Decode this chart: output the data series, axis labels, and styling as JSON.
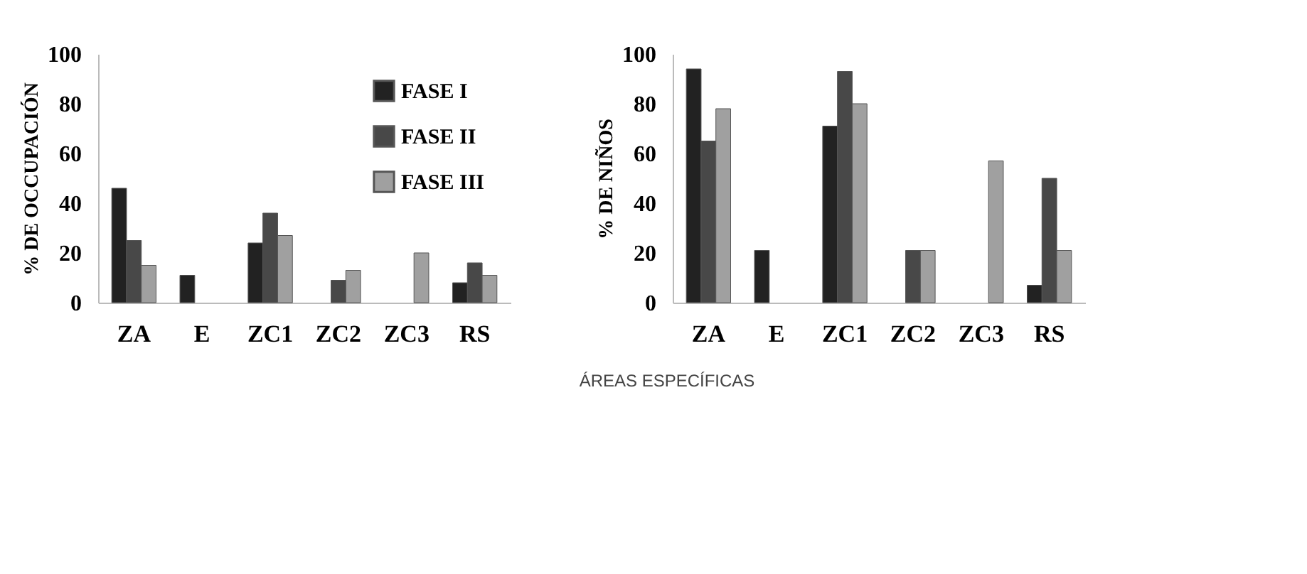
{
  "chart_data": [
    {
      "type": "bar",
      "ylabel": "% DE OCCUPACIÓN",
      "categories": [
        "ZA",
        "E",
        "ZC1",
        "ZC2",
        "ZC3",
        "RS"
      ],
      "ylim": [
        0,
        100
      ],
      "yticks": [
        0,
        20,
        40,
        60,
        80,
        100
      ],
      "legend": "top right",
      "grid": false,
      "series": [
        {
          "name": "FASE I",
          "color": "#222222",
          "values": [
            46,
            11,
            24,
            null,
            null,
            8
          ]
        },
        {
          "name": "FASE II",
          "color": "#484848",
          "values": [
            25,
            null,
            36,
            9,
            null,
            16
          ]
        },
        {
          "name": "FASE III",
          "color": "#a0a0a0",
          "values": [
            15,
            null,
            27,
            13,
            20,
            11
          ]
        }
      ],
      "annotations": [
        "ÁREAS ESPECÍFICAS"
      ]
    },
    {
      "type": "bar",
      "ylabel": "% DE NIÑOS",
      "categories": [
        "ZA",
        "E",
        "ZC1",
        "ZC2",
        "ZC3",
        "RS"
      ],
      "ylim": [
        0,
        100
      ],
      "yticks": [
        0,
        20,
        40,
        60,
        80,
        100
      ],
      "legend": false,
      "grid": false,
      "series": [
        {
          "color": "#222222",
          "values": [
            94,
            21,
            71,
            null,
            null,
            7
          ]
        },
        {
          "color": "#484848",
          "values": [
            65,
            null,
            93,
            21,
            null,
            50
          ]
        },
        {
          "color": "#a0a0a0",
          "values": [
            78,
            null,
            80,
            21,
            57,
            21
          ]
        }
      ]
    }
  ]
}
